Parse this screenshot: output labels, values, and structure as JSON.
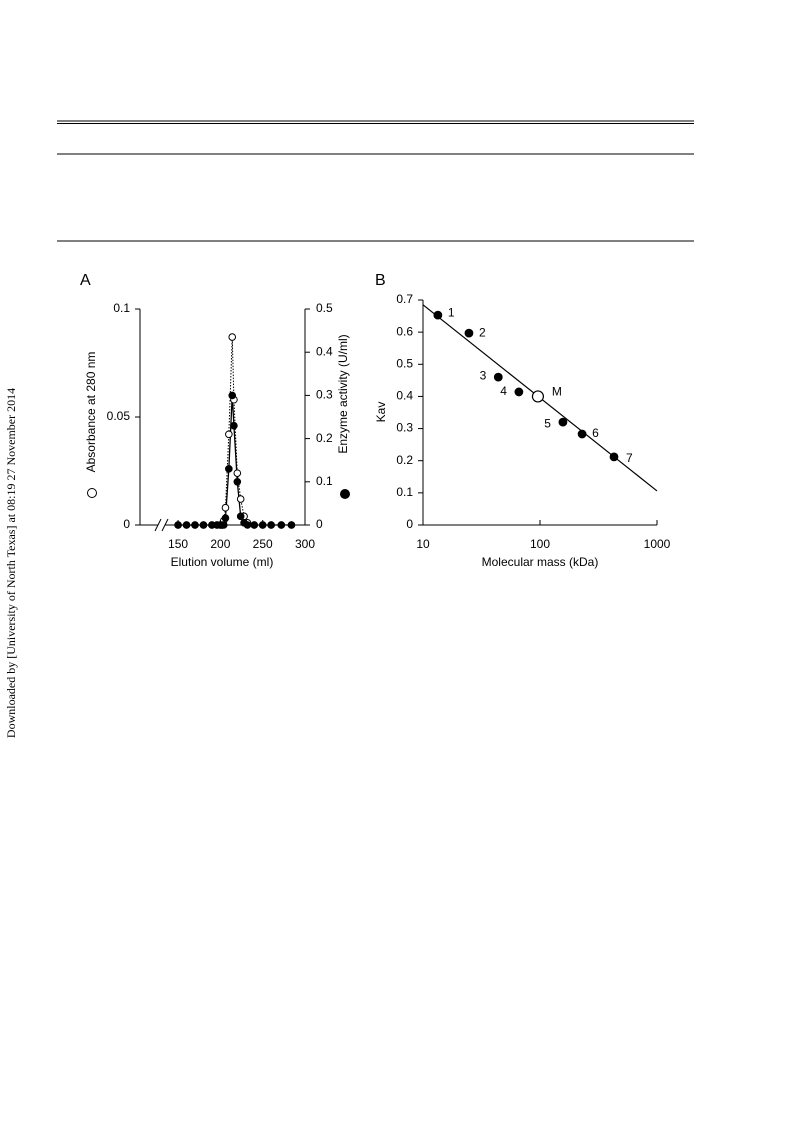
{
  "side_text": "Downloaded by [University of North Texas] at 08:19 27 November 2014",
  "chart_data": [
    {
      "type": "line",
      "panel": "A",
      "xlabel": "Elution volume (ml)",
      "ylabel": "Absorbance at 280 nm",
      "y2label": "Enzyme activity (U/ml)",
      "x": [
        150,
        160,
        170,
        180,
        190,
        196,
        200,
        202,
        204,
        206,
        210,
        214,
        216,
        220,
        224,
        228,
        232,
        240,
        250,
        260,
        272,
        284
      ],
      "xlim": [
        105,
        300
      ],
      "xticks": [
        150,
        200,
        250,
        300
      ],
      "ylim": [
        0,
        0.1
      ],
      "yticks": [
        0,
        0.05,
        0.1
      ],
      "y2lim": [
        0,
        0.5
      ],
      "y2ticks": [
        0,
        0.1,
        0.2,
        0.3,
        0.4,
        0.5
      ],
      "series": [
        {
          "marker": "open",
          "line": "dotted",
          "color": "#000000",
          "values": [
            0,
            0,
            0,
            0,
            0,
            0,
            0,
            0,
            0.002,
            0.008,
            0.042,
            0.087,
            0.058,
            0.024,
            0.012,
            0.004,
            0.001,
            0,
            0,
            0,
            0,
            0
          ]
        },
        {
          "marker": "filled",
          "line": "solid",
          "axis": "y2",
          "color": "#000000",
          "values": [
            0,
            0,
            0,
            0,
            0,
            0,
            0,
            0,
            0,
            0.016,
            0.13,
            0.3,
            0.23,
            0.1,
            0.02,
            0.005,
            0,
            0,
            0,
            0,
            0,
            0
          ]
        }
      ]
    },
    {
      "type": "scatter",
      "panel": "B",
      "xlabel": "Molecular mass (kDa)",
      "ylabel": "Kav",
      "xscale": "log",
      "xlim": [
        10,
        1000
      ],
      "xticks": [
        10,
        100,
        1000
      ],
      "ylim": [
        0,
        0.7
      ],
      "yticks": [
        0,
        0.1,
        0.2,
        0.3,
        0.4,
        0.5,
        0.6,
        0.7
      ],
      "x": [
        13.4,
        24.7,
        44,
        66,
        157,
        229,
        429,
        96
      ],
      "values": [
        0.653,
        0.597,
        0.46,
        0.414,
        0.32,
        0.283,
        0.212,
        0.4
      ],
      "point_labels": [
        "1",
        "2",
        "3",
        "4",
        "5",
        "6",
        "7",
        "M"
      ],
      "markers": [
        "filled",
        "filled",
        "filled",
        "filled",
        "filled",
        "filled",
        "filled",
        "open"
      ],
      "color": "#000000",
      "fit_line": {
        "x": [
          10,
          1000
        ],
        "values": [
          0.685,
          0.106
        ]
      }
    }
  ]
}
